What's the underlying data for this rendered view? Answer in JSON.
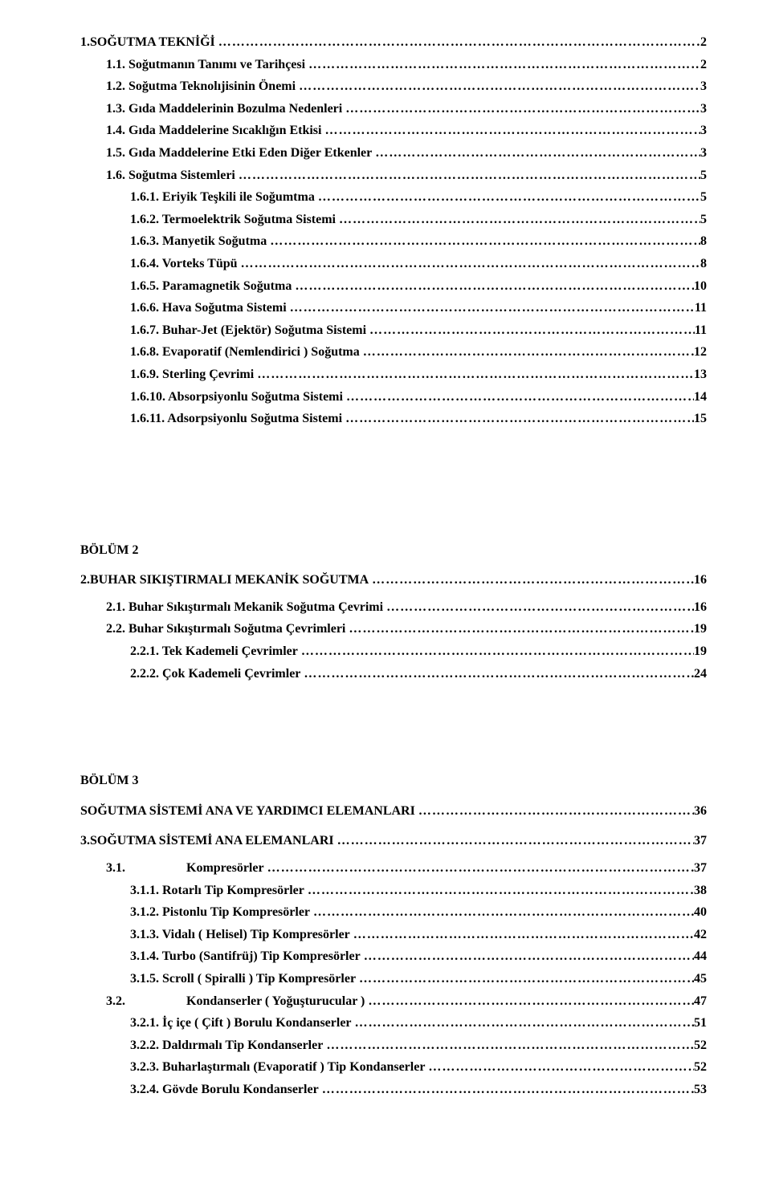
{
  "dots": "………………………………………………………………………………………………………………………",
  "bolum1": {
    "lines": [
      {
        "label": "1.SOĞUTMA TEKNİĞİ",
        "page": "2",
        "indent": ""
      },
      {
        "label": "1.1. Soğutmanın Tanımı ve Tarihçesi",
        "page": "2",
        "indent": "indent-1"
      },
      {
        "label": "1.2. Soğutma Teknolıjisinin Önemi",
        "page": "3",
        "indent": "indent-1"
      },
      {
        "label": "1.3. Gıda Maddelerinin Bozulma Nedenleri",
        "page": "3",
        "indent": "indent-1"
      },
      {
        "label": "1.4. Gıda Maddelerine Sıcaklığın Etkisi",
        "page": "3",
        "indent": "indent-1"
      },
      {
        "label": "1.5. Gıda Maddelerine Etki Eden Diğer Etkenler",
        "page": "3",
        "indent": "indent-1"
      },
      {
        "label": "1.6. Soğutma Sistemleri",
        "page": "5",
        "indent": "indent-1"
      },
      {
        "label": "1.6.1. Eriyik Teşkili ile Soğumtma",
        "page": "5",
        "indent": "indent-2"
      },
      {
        "label": "1.6.2. Termoelektrik Soğutma Sistemi",
        "page": "5",
        "indent": "indent-2"
      },
      {
        "label": "1.6.3. Manyetik Soğutma",
        "page": "8",
        "indent": "indent-2"
      },
      {
        "label": "1.6.4. Vorteks Tüpü",
        "page": "8",
        "indent": "indent-2"
      },
      {
        "label": "1.6.5. Paramagnetik Soğutma",
        "page": "10",
        "indent": "indent-2"
      },
      {
        "label": "1.6.6. Hava Soğutma Sistemi",
        "page": "11",
        "indent": "indent-2"
      },
      {
        "label": "1.6.7. Buhar-Jet (Ejektör) Soğutma Sistemi",
        "page": "11",
        "indent": "indent-2"
      },
      {
        "label": "1.6.8. Evaporatif (Nemlendirici ) Soğutma",
        "page": "12",
        "indent": "indent-2"
      },
      {
        "label": "1.6.9. Sterling Çevrimi",
        "page": "13",
        "indent": "indent-2"
      },
      {
        "label": "1.6.10. Absorpsiyonlu Soğutma Sistemi",
        "page": "14",
        "indent": "indent-2"
      },
      {
        "label": "1.6.11. Adsorpsiyonlu Soğutma Sistemi",
        "page": "15",
        "indent": "indent-2"
      }
    ]
  },
  "bolum2": {
    "title": "BÖLÜM 2",
    "heading": {
      "label": "2.BUHAR SIKIŞTIRMALI MEKANİK  SOĞUTMA",
      "page": "16"
    },
    "lines": [
      {
        "label": "2.1.  Buhar Sıkıştırmalı Mekanik Soğutma Çevrimi",
        "page": "16",
        "indent": "indent-1"
      },
      {
        "label": "2.2.  Buhar Sıkıştırmalı Soğutma Çevrimleri",
        "page": "19",
        "indent": "indent-1"
      },
      {
        "label": "2.2.1.  Tek Kademeli Çevrimler",
        "page": "19",
        "indent": "indent-2"
      },
      {
        "label": "2.2.2.  Çok Kademeli Çevrimler",
        "page": "24",
        "indent": "indent-2"
      }
    ]
  },
  "bolum3": {
    "title": "BÖLÜM 3",
    "heading1": {
      "label": "SOĞUTMA SİSTEMİ ANA VE YARDIMCI ELEMANLARI",
      "page": "36"
    },
    "heading2": {
      "label": "3.SOĞUTMA SİSTEMİ ANA ELEMANLARI",
      "page": "37"
    },
    "group31": {
      "head": {
        "num": "3.1.",
        "label": "Kompresörler",
        "page": "37",
        "indent": "indent-1"
      },
      "items": [
        {
          "label": "3.1.1.  Rotarlı Tip Kompresörler",
          "page": "38",
          "indent": "indent-2"
        },
        {
          "label": "3.1.2.  Pistonlu Tip Kompresörler",
          "page": "40",
          "indent": "indent-2"
        },
        {
          "label": "3.1.3.  Vidalı ( Helisel) Tip Kompresörler",
          "page": "42",
          "indent": "indent-2"
        },
        {
          "label": "3.1.4.  Turbo (Santifrüj) Tip Kompresörler",
          "page": "44",
          "indent": "indent-2"
        },
        {
          "label": "3.1.5.  Scroll ( Spiralli ) Tip Kompresörler",
          "page": "45",
          "indent": "indent-2"
        }
      ]
    },
    "group32": {
      "head": {
        "num": "3.2.",
        "label": "Kondanserler ( Yoğuşturucular )",
        "page": "47",
        "indent": "indent-1"
      },
      "items": [
        {
          "label": "3.2.1.  İç içe ( Çift ) Borulu Kondanserler",
          "page": "51",
          "indent": "indent-2"
        },
        {
          "label": "3.2.2.  Daldırmalı Tip Kondanserler",
          "page": "52",
          "indent": "indent-2"
        },
        {
          "label": "3.2.3.  Buharlaştırmalı (Evaporatif ) Tip Kondanserler",
          "page": "52",
          "indent": "indent-2"
        },
        {
          "label": "3.2.4.  Gövde Borulu Kondanserler",
          "page": "53",
          "indent": "indent-2"
        }
      ]
    }
  }
}
